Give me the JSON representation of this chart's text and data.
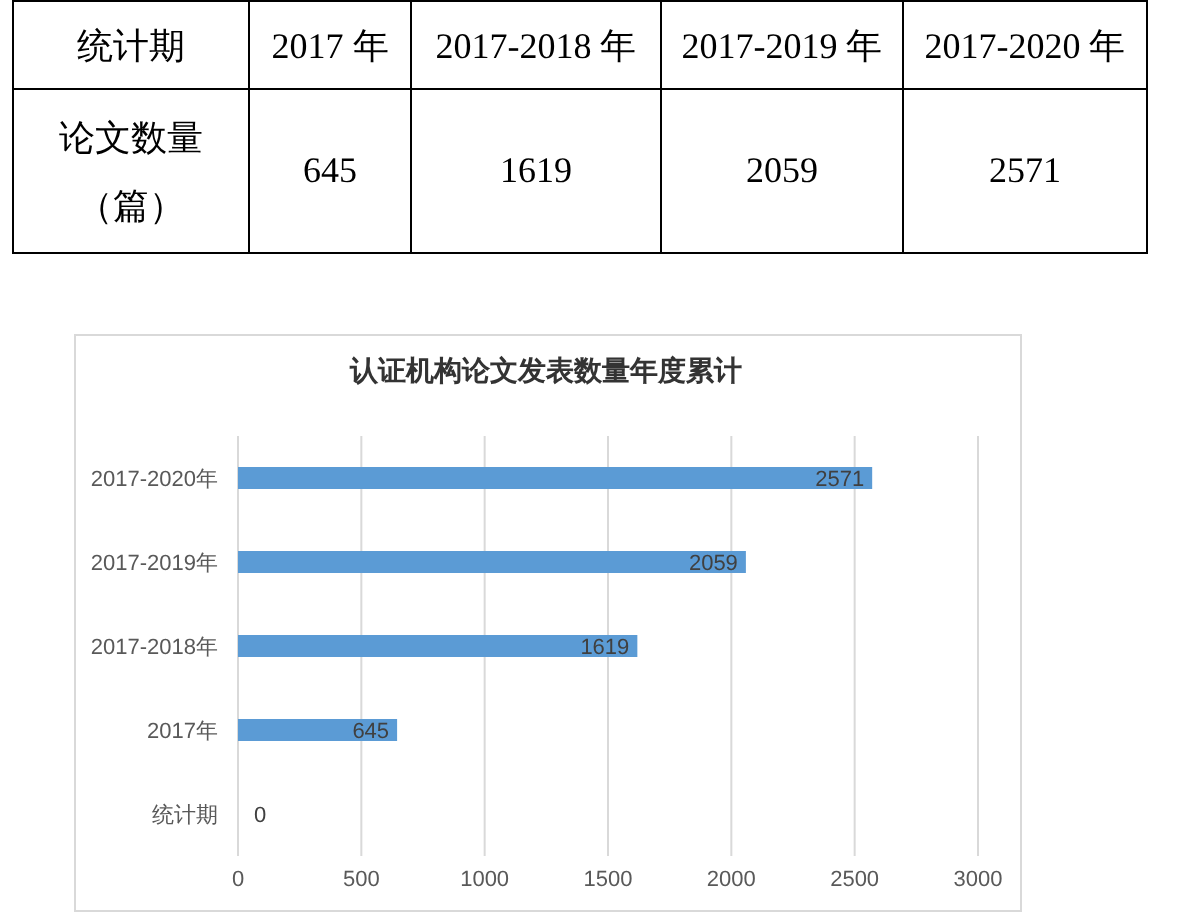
{
  "chart_data": [
    {
      "type": "other",
      "xlabel": "统计期",
      "ylabel": "论文数量（篇）",
      "categories": [
        "2017 年",
        "2017-2018 年",
        "2017-2019 年",
        "2017-2020 年"
      ],
      "values": [
        645,
        1619,
        2059,
        2571
      ],
      "data_labels": true
    },
    {
      "type": "bar",
      "orientation": "horizontal",
      "title": "认证机构论文发表数量年度累计",
      "categories": [
        "2017-2020年",
        "2017-2019年",
        "2017-2018年",
        "2017年",
        "统计期"
      ],
      "values": [
        2571,
        2059,
        1619,
        645,
        0
      ],
      "color": "#5b9bd5",
      "xlim": [
        0,
        3000
      ],
      "xticks": [
        0,
        500,
        1000,
        1500,
        2000,
        2500,
        3000
      ],
      "grid": "x",
      "data_labels": true
    }
  ]
}
